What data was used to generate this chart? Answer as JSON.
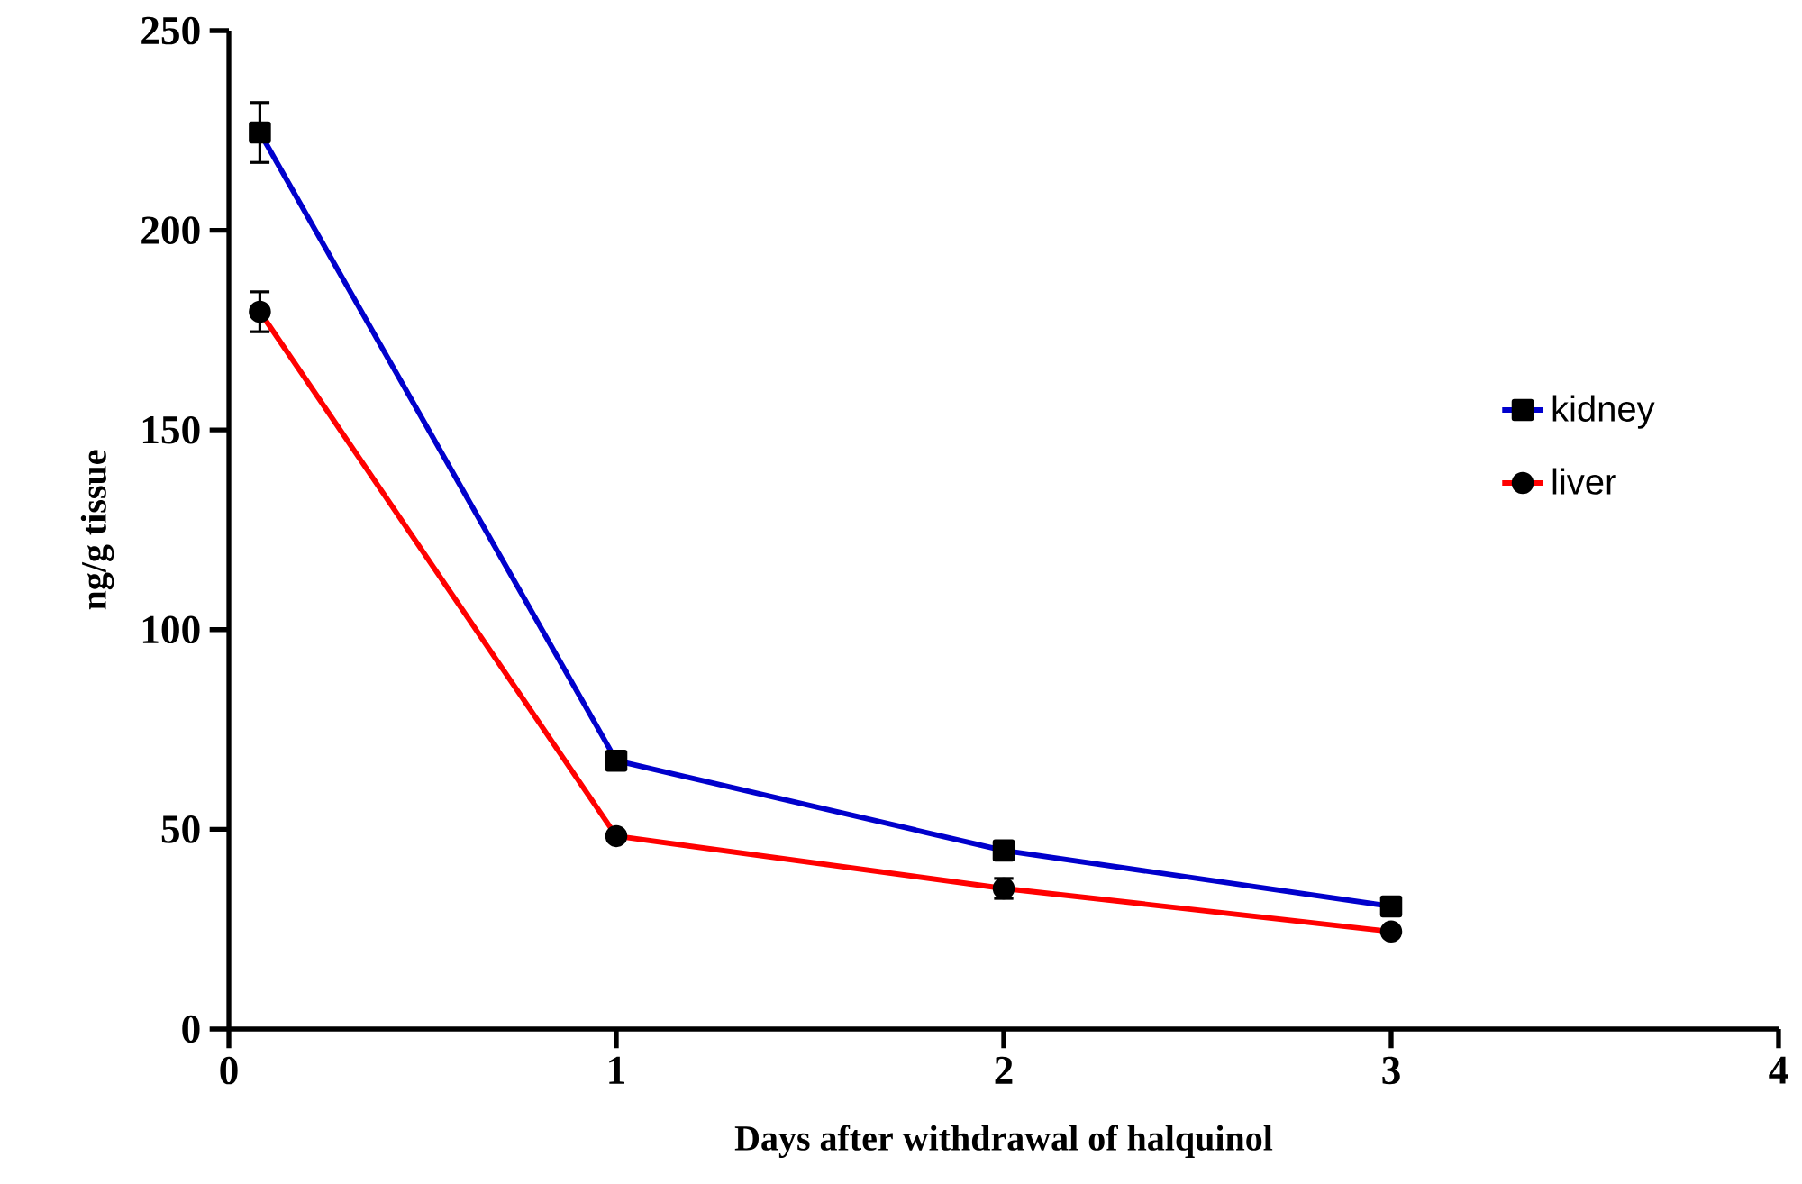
{
  "chart_data": {
    "type": "line",
    "xlabel": "Days after withdrawal of halquinol",
    "ylabel": "ng/g tissue",
    "x": [
      0.08,
      1,
      2,
      3
    ],
    "series": [
      {
        "name": "kidney",
        "color": "#0000cc",
        "marker": "square",
        "values": [
          224.5,
          67.2,
          44.7,
          30.7
        ],
        "errors": [
          7.5,
          2,
          1,
          1
        ]
      },
      {
        "name": "liver",
        "color": "#ff0000",
        "marker": "circle",
        "values": [
          179.6,
          48.3,
          35.2,
          24.4
        ],
        "errors": [
          5,
          1,
          2.5,
          1
        ]
      }
    ],
    "xlim": [
      0,
      4
    ],
    "xticks": [
      0,
      1,
      2,
      3,
      4
    ],
    "ylim": [
      0,
      250
    ],
    "yticks": [
      0,
      50,
      100,
      150,
      200,
      250
    ],
    "grid": false,
    "legend": "right",
    "line_style": "solid"
  }
}
